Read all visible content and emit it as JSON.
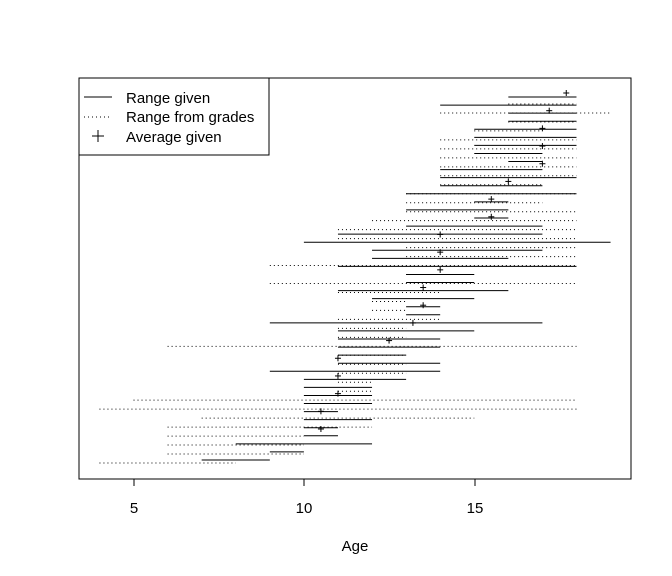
{
  "chart_data": {
    "type": "line",
    "title": "",
    "xlabel": "Age",
    "ylabel": "",
    "xlim": [
      3.4,
      19.6
    ],
    "xticks": [
      5,
      10,
      15
    ],
    "grid": false,
    "legend": {
      "placement": "top-left",
      "entries": [
        {
          "label": "Range given",
          "style": "solid-line"
        },
        {
          "label": "Range from grades",
          "style": "dotted-line"
        },
        {
          "label": "Average given",
          "style": "plus-marker"
        }
      ]
    },
    "series": [
      {
        "name": "Range given",
        "segments": [
          [
            16,
            18
          ],
          [
            14,
            18
          ],
          [
            16,
            18
          ],
          [
            16,
            18
          ],
          [
            15,
            18
          ],
          [
            15,
            18
          ],
          [
            15,
            18
          ],
          [
            15,
            17
          ],
          [
            16,
            17
          ],
          [
            14,
            17
          ],
          [
            14,
            18
          ],
          [
            14,
            17
          ],
          [
            13,
            18
          ],
          [
            15,
            16
          ],
          [
            13,
            16
          ],
          [
            15,
            16
          ],
          [
            13,
            17
          ],
          [
            11,
            17
          ],
          [
            10,
            19
          ],
          [
            12,
            17
          ],
          [
            12,
            16
          ],
          [
            11,
            18
          ],
          [
            13,
            15
          ],
          [
            13,
            15
          ],
          [
            11,
            16
          ],
          [
            12,
            15
          ],
          [
            13,
            14
          ],
          [
            13,
            14
          ],
          [
            9,
            17
          ],
          [
            11,
            15
          ],
          [
            11,
            14
          ],
          [
            11,
            14
          ],
          [
            11,
            13
          ],
          [
            11,
            14
          ],
          [
            9,
            14
          ],
          [
            10,
            13
          ],
          [
            10,
            12
          ],
          [
            10,
            12
          ],
          [
            10,
            12
          ],
          [
            10,
            11
          ],
          [
            10,
            12
          ],
          [
            10,
            11
          ],
          [
            10,
            11
          ],
          [
            8,
            12
          ],
          [
            9,
            10
          ],
          [
            7,
            9
          ]
        ]
      },
      {
        "name": "Range from grades",
        "segments": [
          [
            16,
            18
          ],
          [
            14,
            19
          ],
          [
            16,
            18
          ],
          [
            15,
            17
          ],
          [
            14,
            18
          ],
          [
            14,
            18
          ],
          [
            14,
            18
          ],
          [
            14,
            18
          ],
          [
            14,
            18
          ],
          [
            14,
            17
          ],
          [
            13,
            18
          ],
          [
            13,
            17
          ],
          [
            13,
            18
          ],
          [
            12,
            18
          ],
          [
            11,
            18
          ],
          [
            11,
            18
          ],
          [
            13,
            18
          ],
          [
            13,
            18
          ],
          [
            9,
            18
          ],
          [
            13,
            14
          ],
          [
            9,
            18
          ],
          [
            11,
            14
          ],
          [
            12,
            13
          ],
          [
            12,
            13
          ],
          [
            11,
            14
          ],
          [
            11,
            13
          ],
          [
            11,
            13
          ],
          [
            6,
            18
          ],
          [
            11,
            13
          ],
          [
            11,
            13
          ],
          [
            11,
            13
          ],
          [
            11,
            12
          ],
          [
            11,
            12
          ],
          [
            5,
            18
          ],
          [
            4,
            18
          ],
          [
            7,
            15
          ],
          [
            6,
            12
          ],
          [
            6,
            10
          ],
          [
            6,
            10
          ],
          [
            6,
            10
          ],
          [
            4,
            8
          ]
        ]
      },
      {
        "name": "Average given",
        "points": [
          17.7,
          17.2,
          17.0,
          17.0,
          17.0,
          16.0,
          15.5,
          15.5,
          14.0,
          14.0,
          14.0,
          13.5,
          13.5,
          13.2,
          12.5,
          11.0,
          11.0,
          11.0,
          10.5,
          10.5
        ]
      }
    ]
  }
}
